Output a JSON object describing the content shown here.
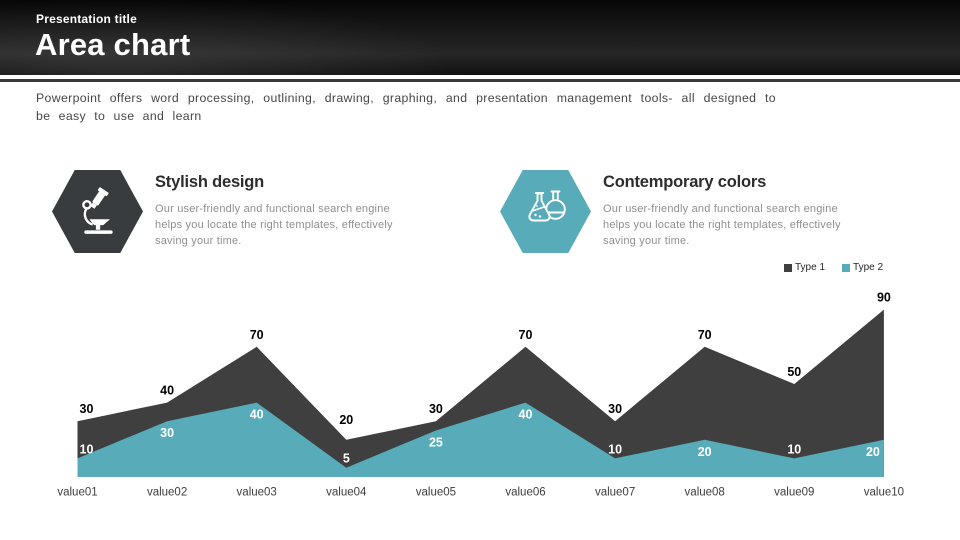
{
  "slide": {
    "kicker": "Presentation title",
    "title": "Area chart",
    "description": "Powerpoint offers word processing, outlining, drawing, graphing, and presentation management tools- all designed to be easy to use and learn"
  },
  "features": [
    {
      "title": "Stylish design",
      "body": "Our user-friendly and functional search engine helps you locate the right templates, effectively saving your time.",
      "icon": "microscope-icon",
      "color": "#383c3e"
    },
    {
      "title": "Contemporary colors",
      "body": "Our user-friendly and functional search engine helps you locate the right templates, effectively saving your time.",
      "icon": "flasks-icon",
      "color": "#58abb9"
    }
  ],
  "chart_data": {
    "type": "area",
    "categories": [
      "value01",
      "value02",
      "value03",
      "value04",
      "value05",
      "value06",
      "value07",
      "value08",
      "value09",
      "value10"
    ],
    "series": [
      {
        "name": "Type 1",
        "color": "#3f3f3f",
        "label_color": "#000000",
        "values": [
          30,
          40,
          70,
          20,
          30,
          70,
          30,
          70,
          50,
          90
        ]
      },
      {
        "name": "Type 2",
        "color": "#58acba",
        "label_color": "#ffffff",
        "values": [
          10,
          30,
          40,
          5,
          25,
          40,
          10,
          20,
          10,
          20
        ]
      }
    ],
    "ylim": [
      0,
      95
    ],
    "grid": false,
    "data_labels": true,
    "legend_position": "top-right"
  }
}
